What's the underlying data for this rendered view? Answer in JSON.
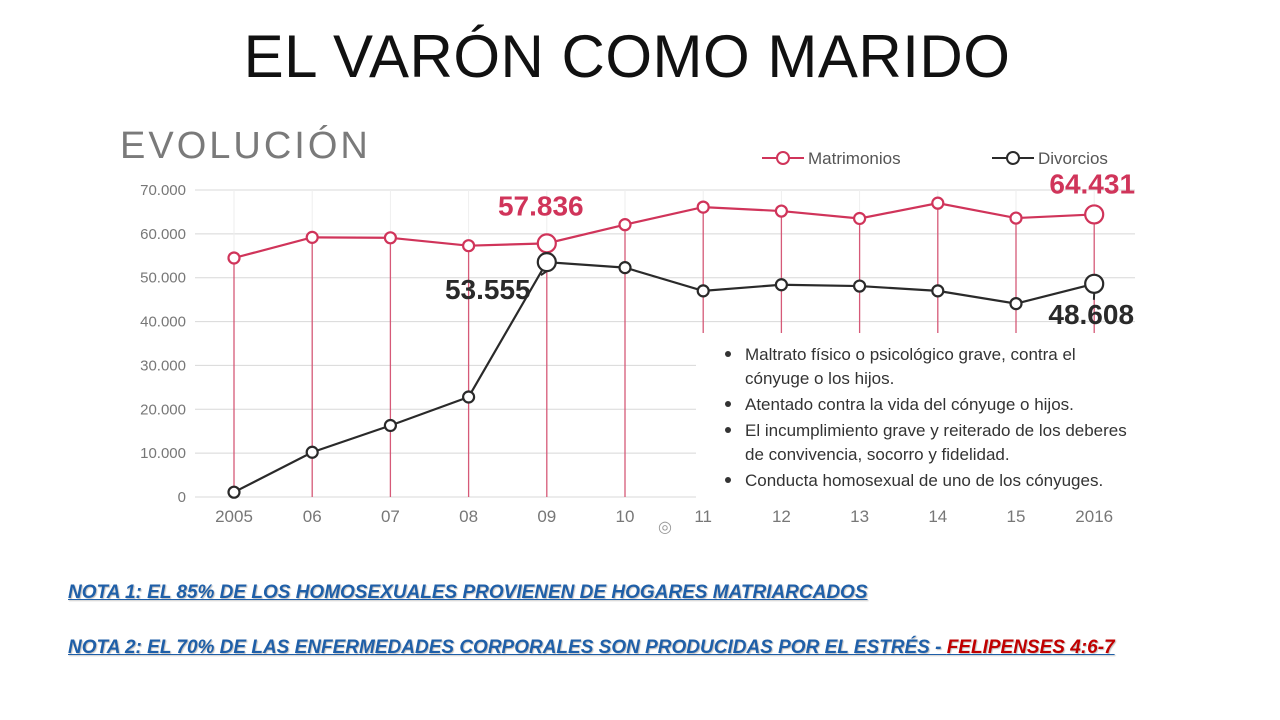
{
  "page": {
    "title": "EL VARÓN COMO MARIDO"
  },
  "chart_data": {
    "type": "line",
    "title": "EVOLUCIÓN",
    "categories": [
      "2005",
      "06",
      "07",
      "08",
      "09",
      "10",
      "11",
      "12",
      "13",
      "14",
      "15",
      "2016"
    ],
    "series": [
      {
        "name": "Matrimonios",
        "color": "#d0345a",
        "values": [
          54500,
          59200,
          59100,
          57300,
          57836,
          62100,
          66100,
          65200,
          63500,
          67000,
          63600,
          64431
        ]
      },
      {
        "name": "Divorcios",
        "color": "#2a2a2a",
        "values": [
          1100,
          10200,
          16300,
          22800,
          53555,
          52300,
          47000,
          48400,
          48100,
          47000,
          44100,
          48608
        ]
      }
    ],
    "ylim": [
      0,
      70000
    ],
    "y_ticks": [
      "0",
      "10.000",
      "20.000",
      "30.000",
      "40.000",
      "50.000",
      "60.000",
      "70.000"
    ],
    "grid": true,
    "legend": "top-right",
    "callouts": [
      {
        "series": 0,
        "index": 4,
        "label": "57.836"
      },
      {
        "series": 0,
        "index": 11,
        "label": "64.431"
      },
      {
        "series": 1,
        "index": 4,
        "label": "53.555"
      },
      {
        "series": 1,
        "index": 11,
        "label": "48.608"
      }
    ],
    "annotations": [
      "Maltrato físico o psicológico grave, contra el cónyuge o los hijos.",
      "Atentado contra la vida del cónyuge o hijos.",
      "El incumplimiento grave y reiterado de los deberes de convivencia, socorro y fidelidad.",
      "Conducta homosexual de uno de los cónyuges."
    ]
  },
  "notes": {
    "note1": "NOTA 1: EL 85% DE LOS  HOMOSEXUALES  PROVIENEN  DE  HOGARES  MATRIARCADOS",
    "note2_main": "NOTA 2: EL 70% DE LAS ENFERMEDADES CORPORALES SON PRODUCIDAS POR EL ESTRÉS - ",
    "note2_ref": "FELIPENSES 4:6-7",
    "note_color": "#1f5fa8",
    "ref_color": "#c00000"
  }
}
